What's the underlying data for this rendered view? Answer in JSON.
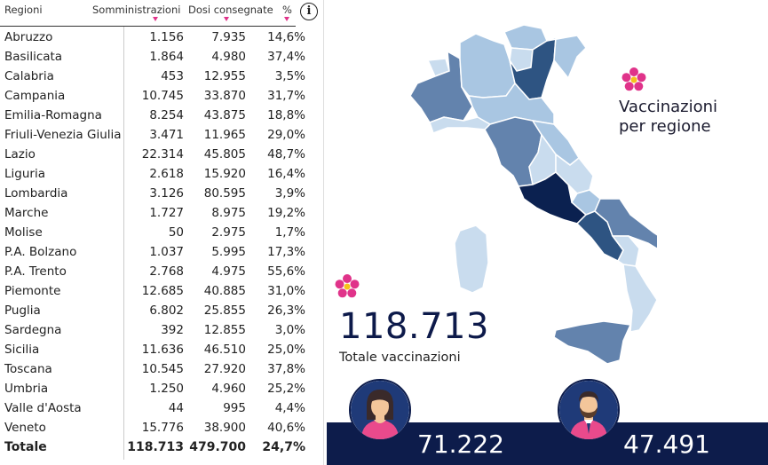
{
  "table": {
    "headers": {
      "region": "Regioni",
      "somm": "Somministrazioni",
      "dosi": "Dosi consegnate",
      "pct": "%"
    },
    "info_icon": "i",
    "rows": [
      {
        "name": "Abruzzo",
        "somm": "1.156",
        "dosi": "7.935",
        "pct": "14,6%"
      },
      {
        "name": "Basilicata",
        "somm": "1.864",
        "dosi": "4.980",
        "pct": "37,4%"
      },
      {
        "name": "Calabria",
        "somm": "453",
        "dosi": "12.955",
        "pct": "3,5%"
      },
      {
        "name": "Campania",
        "somm": "10.745",
        "dosi": "33.870",
        "pct": "31,7%"
      },
      {
        "name": "Emilia-Romagna",
        "somm": "8.254",
        "dosi": "43.875",
        "pct": "18,8%"
      },
      {
        "name": "Friuli-Venezia Giulia",
        "somm": "3.471",
        "dosi": "11.965",
        "pct": "29,0%"
      },
      {
        "name": "Lazio",
        "somm": "22.314",
        "dosi": "45.805",
        "pct": "48,7%"
      },
      {
        "name": "Liguria",
        "somm": "2.618",
        "dosi": "15.920",
        "pct": "16,4%"
      },
      {
        "name": "Lombardia",
        "somm": "3.126",
        "dosi": "80.595",
        "pct": "3,9%"
      },
      {
        "name": "Marche",
        "somm": "1.727",
        "dosi": "8.975",
        "pct": "19,2%"
      },
      {
        "name": "Molise",
        "somm": "50",
        "dosi": "2.975",
        "pct": "1,7%"
      },
      {
        "name": "P.A. Bolzano",
        "somm": "1.037",
        "dosi": "5.995",
        "pct": "17,3%"
      },
      {
        "name": "P.A. Trento",
        "somm": "2.768",
        "dosi": "4.975",
        "pct": "55,6%"
      },
      {
        "name": "Piemonte",
        "somm": "12.685",
        "dosi": "40.885",
        "pct": "31,0%"
      },
      {
        "name": "Puglia",
        "somm": "6.802",
        "dosi": "25.855",
        "pct": "26,3%"
      },
      {
        "name": "Sardegna",
        "somm": "392",
        "dosi": "12.855",
        "pct": "3,0%"
      },
      {
        "name": "Sicilia",
        "somm": "11.636",
        "dosi": "46.510",
        "pct": "25,0%"
      },
      {
        "name": "Toscana",
        "somm": "10.545",
        "dosi": "27.920",
        "pct": "37,8%"
      },
      {
        "name": "Umbria",
        "somm": "1.250",
        "dosi": "4.960",
        "pct": "25,2%"
      },
      {
        "name": "Valle d'Aosta",
        "somm": "44",
        "dosi": "995",
        "pct": "4,4%"
      },
      {
        "name": "Veneto",
        "somm": "15.776",
        "dosi": "38.900",
        "pct": "40,6%"
      }
    ],
    "total": {
      "name": "Totale",
      "somm": "118.713",
      "dosi": "479.700",
      "pct": "24,7%"
    }
  },
  "map": {
    "title_line1": "Vaccinazioni",
    "title_line2": "per regione",
    "colors": {
      "darkest": "#0b2150",
      "dark": "#2e5482",
      "mid": "#6383ad",
      "light": "#a9c6e2",
      "lightest": "#c9dcee"
    }
  },
  "summary": {
    "total_value": "118.713",
    "total_label": "Totale vaccinazioni",
    "women_count": "71.222",
    "men_count": "47.491"
  },
  "icons": {
    "flower": "flower-icon",
    "female": "female-avatar-icon",
    "male": "male-avatar-icon"
  },
  "accent": "#e0338a",
  "band_color": "#0d1c4b"
}
